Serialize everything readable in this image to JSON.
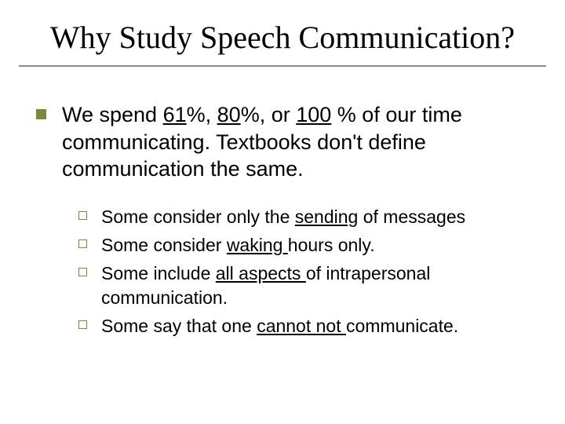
{
  "colors": {
    "background": "#ffffff",
    "text": "#000000",
    "accent_bullet": "#7a8a3a",
    "rule": "#888888"
  },
  "typography": {
    "title_font": "Times New Roman",
    "title_size_pt": 40,
    "body_font": "Arial",
    "level1_size_pt": 27,
    "level2_size_pt": 23
  },
  "title": "Why Study Speech Communication?",
  "level1": {
    "prefix": "We spend ",
    "val1": "61",
    "mid1": "%, ",
    "val2": "80",
    "mid2": "%, or ",
    "val3": "100",
    "suffix": " % of our time communicating.  Textbooks don't define communication the same."
  },
  "level2": [
    {
      "pre": "Some consider only the ",
      "blank": "sending",
      "post": " of messages"
    },
    {
      "pre": "Some consider ",
      "blank": " waking ",
      "post": " hours only."
    },
    {
      "pre": "Some include ",
      "blank": " all aspects ",
      "post": " of intrapersonal communication."
    },
    {
      "pre": "Some say that one ",
      "blank": " cannot not ",
      "post": " communicate."
    }
  ]
}
